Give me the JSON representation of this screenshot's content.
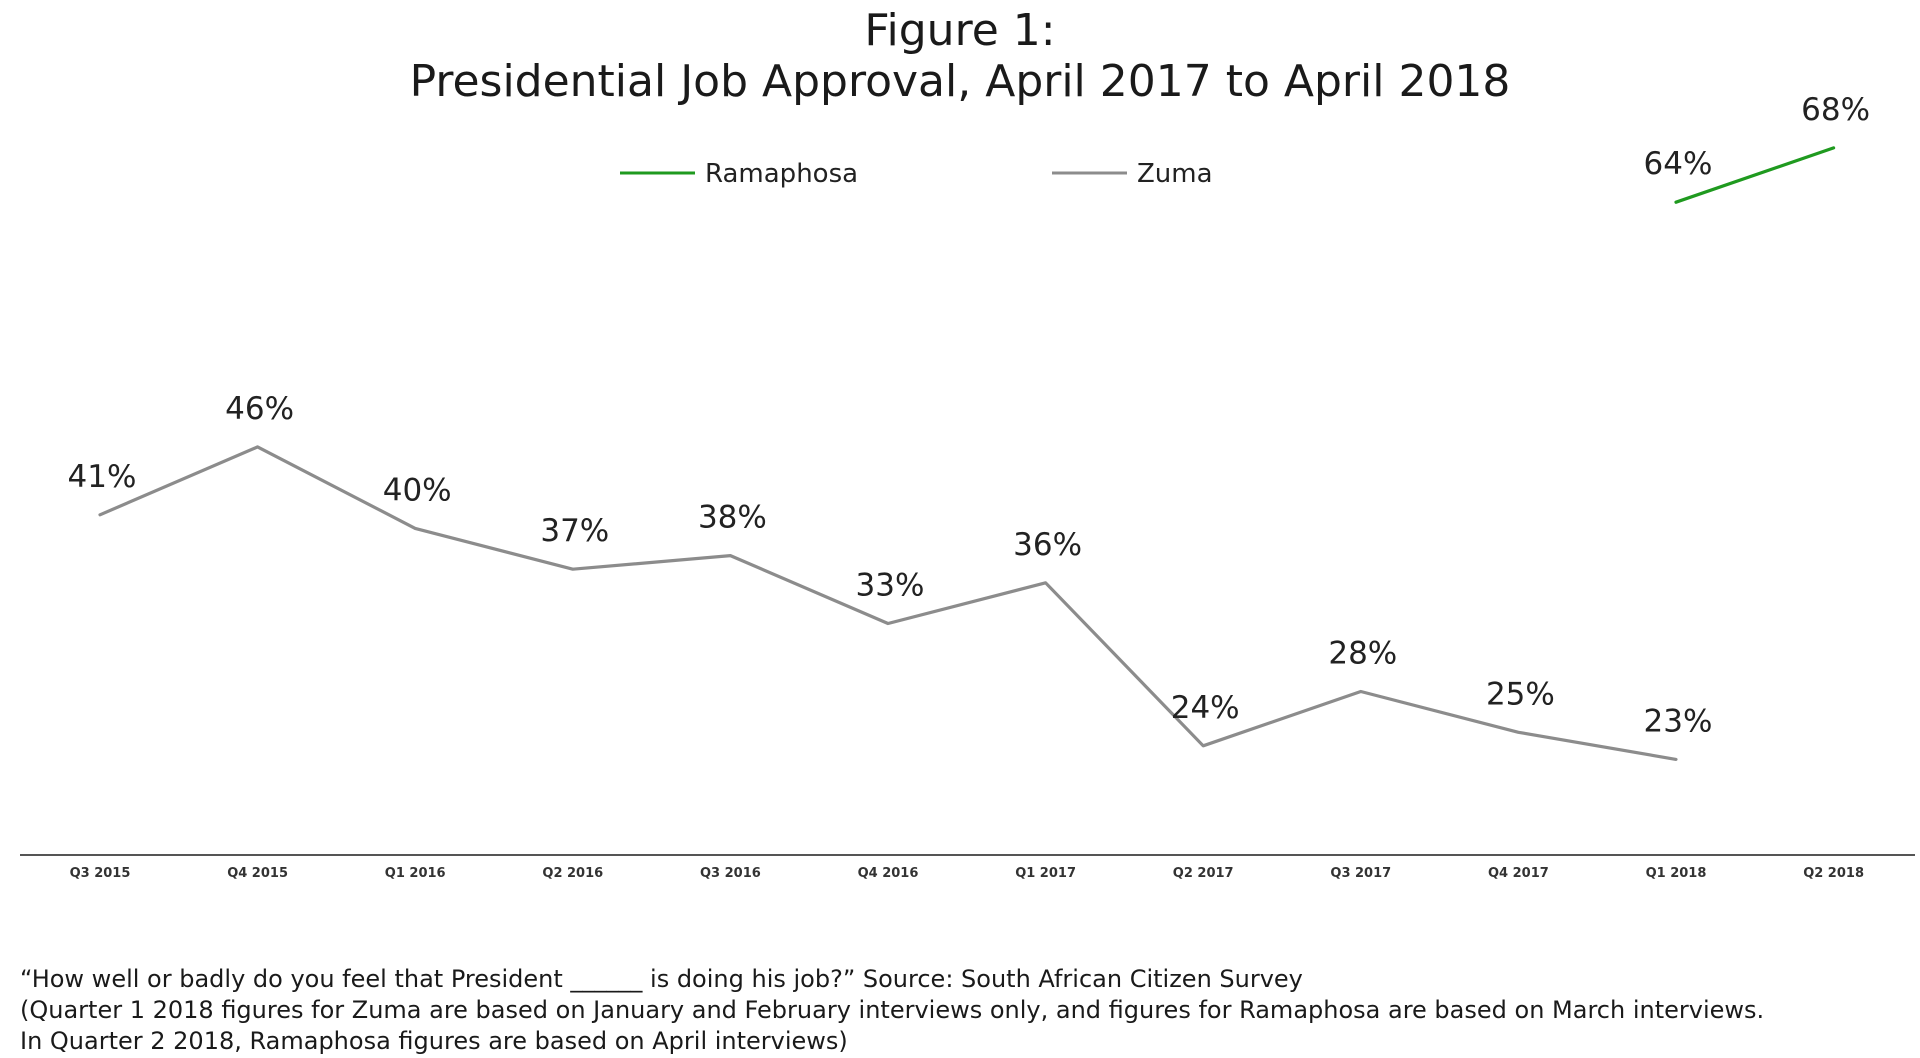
{
  "chart_data": {
    "type": "line",
    "title": "Figure 1:",
    "subtitle": "Presidential Job Approval, April 2017 to April 2018",
    "xlabel": "",
    "ylabel": "",
    "categories": [
      "Q3 2015",
      "Q4 2015",
      "Q1 2016",
      "Q2 2016",
      "Q3 2016",
      "Q4 2016",
      "Q1 2017",
      "Q2 2017",
      "Q3 2017",
      "Q4 2017",
      "Q1 2018",
      "Q2 2018"
    ],
    "ylim": [
      0,
      80
    ],
    "grid": false,
    "legend_position": "top-center",
    "series": [
      {
        "name": "Ramaphosa",
        "color": "#1f9a1f",
        "values": [
          null,
          null,
          null,
          null,
          null,
          null,
          null,
          null,
          null,
          null,
          64,
          68
        ],
        "labels": [
          null,
          null,
          null,
          null,
          null,
          null,
          null,
          null,
          null,
          null,
          "64%",
          "68%"
        ]
      },
      {
        "name": "Zuma",
        "color": "#8c8c8c",
        "values": [
          41,
          46,
          40,
          37,
          38,
          33,
          36,
          24,
          28,
          25,
          23,
          null
        ],
        "labels": [
          "41%",
          "46%",
          "40%",
          "37%",
          "38%",
          "33%",
          "36%",
          "24%",
          "28%",
          "25%",
          "23%",
          null
        ]
      }
    ]
  },
  "footnote": {
    "line1": "“How well or badly do you feel that President ______ is doing his job?”  Source: South African Citizen Survey",
    "line2": "(Quarter 1 2018 figures for Zuma are based on January and February interviews only, and figures for Ramaphosa are based on March interviews.",
    "line3": "In Quarter 2 2018, Ramaphosa figures are based on April interviews)"
  }
}
